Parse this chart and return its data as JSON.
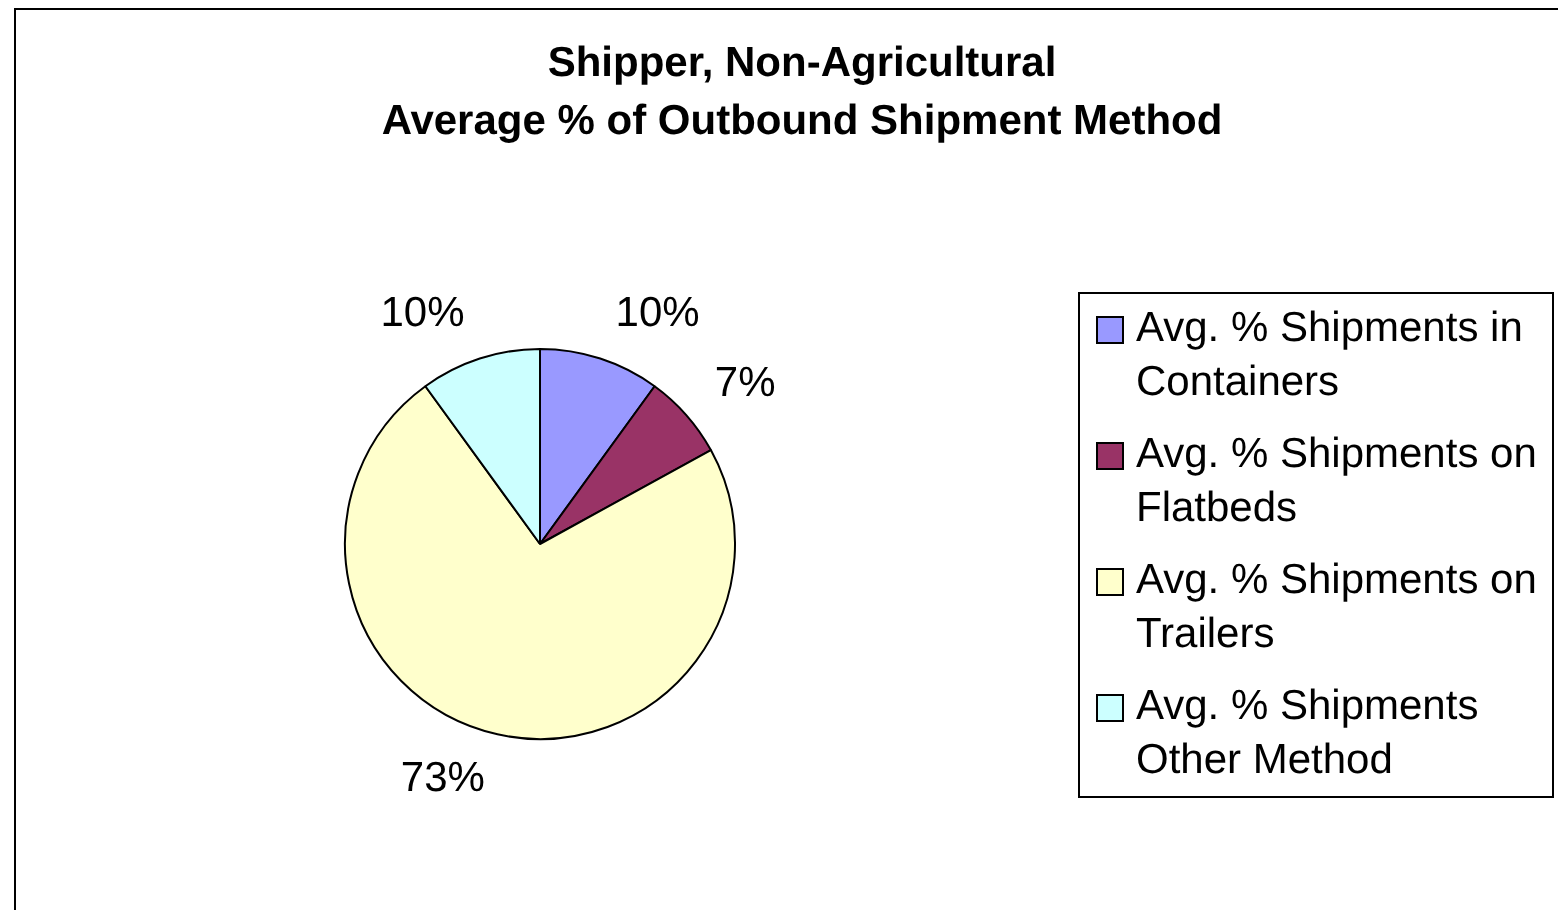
{
  "chart_data": {
    "type": "pie",
    "title": "Shipper, Non-Agricultural\nAverage % of Outbound Shipment Method",
    "categories": [
      "Avg. % Shipments in Containers",
      "Avg. % Shipments on Flatbeds",
      "Avg. % Shipments on Trailers",
      "Avg. % Shipments Other Method"
    ],
    "values": [
      10,
      7,
      73,
      10
    ],
    "colors": [
      "#9999ff",
      "#993366",
      "#ffffcc",
      "#ccffff"
    ],
    "value_labels": [
      "10%",
      "7%",
      "73%",
      "10%"
    ],
    "legend": "right"
  }
}
